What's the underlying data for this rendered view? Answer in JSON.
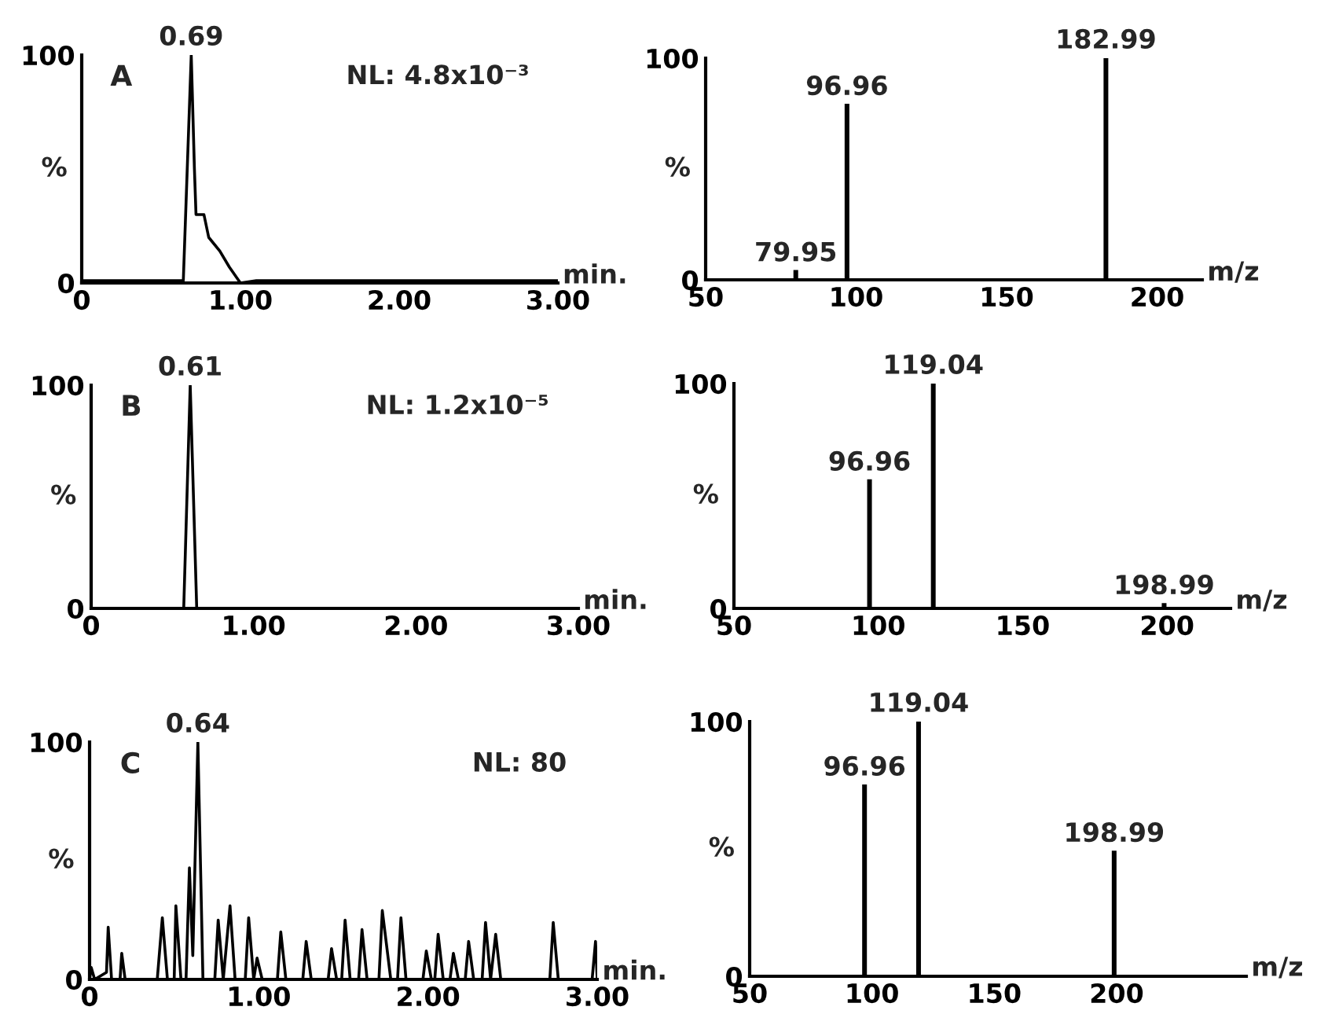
{
  "chart_data": [
    {
      "type": "line",
      "xlabel": "min.",
      "ylabel": "%",
      "annotations": [
        "A",
        "NL: 4.8x10⁻³",
        {
          "text": "0.69",
          "x": 0.69,
          "y": 100
        }
      ],
      "x": [
        0,
        0.2,
        0.4,
        0.6,
        0.64,
        0.69,
        0.71,
        0.72,
        0.77,
        0.8,
        0.87,
        0.93,
        0.98,
        1.0,
        1.1,
        1.5,
        2.0,
        2.5,
        3.0
      ],
      "series": [
        {
          "color": "#000000",
          "values": [
            1,
            1,
            1,
            1,
            1,
            100,
            50,
            30,
            30,
            20,
            14,
            7,
            2,
            0,
            1,
            1,
            1,
            1,
            1
          ]
        }
      ],
      "xlim": [
        0,
        3
      ],
      "ylim": [
        0,
        100
      ],
      "xticks": [
        0,
        {
          "value": 1,
          "label": "1.00"
        },
        {
          "value": 2,
          "label": "2.00"
        },
        {
          "value": 3,
          "label": "3.00"
        }
      ],
      "yticks": [
        0,
        100
      ],
      "grid": false
    },
    {
      "type": "bar",
      "xlabel": "m/z",
      "ylabel": "%",
      "annotations": [
        {
          "text": "79.95",
          "x": 79.95,
          "y": 4
        },
        {
          "text": "96.96",
          "x": 96.96,
          "y": 79
        },
        {
          "text": "182.99",
          "x": 182.99,
          "y": 100
        }
      ],
      "x": [
        79.95,
        96.96,
        182.99
      ],
      "series": [
        {
          "color": "#000000",
          "values": [
            4,
            79,
            100
          ]
        }
      ],
      "xlim": [
        50,
        215
      ],
      "ylim": [
        0,
        100
      ],
      "xticks": [
        50,
        100,
        150,
        200
      ],
      "yticks": [
        0,
        100
      ],
      "grid": false
    },
    {
      "type": "line",
      "xlabel": "min.",
      "ylabel": "%",
      "annotations": [
        "B",
        "NL: 1.2x10⁻⁵",
        {
          "text": "0.61",
          "x": 0.61,
          "y": 100
        }
      ],
      "x": [
        0,
        0.57,
        0.61,
        0.65,
        1.0,
        2.0,
        3.0
      ],
      "series": [
        {
          "color": "#000000",
          "values": [
            0,
            0,
            100,
            0,
            0,
            0,
            0
          ]
        }
      ],
      "xlim": [
        0,
        3
      ],
      "ylim": [
        0,
        100
      ],
      "xticks": [
        0,
        {
          "value": 1,
          "label": "1.00"
        },
        {
          "value": 2,
          "label": "2.00"
        },
        {
          "value": 3,
          "label": "3.00"
        }
      ],
      "yticks": [
        0,
        100
      ],
      "grid": false
    },
    {
      "type": "bar",
      "xlabel": "m/z",
      "ylabel": "%",
      "annotations": [
        {
          "text": "96.96",
          "x": 96.96,
          "y": 57
        },
        {
          "text": "119.04",
          "x": 119.04,
          "y": 100
        },
        {
          "text": "198.99",
          "x": 198.99,
          "y": 2
        }
      ],
      "x": [
        96.96,
        119.04,
        198.99
      ],
      "series": [
        {
          "color": "#000000",
          "values": [
            57,
            100,
            2
          ]
        }
      ],
      "xlim": [
        50,
        222
      ],
      "ylim": [
        0,
        100
      ],
      "xticks": [
        50,
        100,
        150,
        200
      ],
      "yticks": [
        0,
        100
      ],
      "grid": false
    },
    {
      "type": "line",
      "xlabel": "min.",
      "ylabel": "%",
      "annotations": [
        "C",
        "NL: 80",
        {
          "text": "0.64",
          "x": 0.64,
          "y": 100
        }
      ],
      "x": [
        0,
        0.01,
        0.03,
        0.1,
        0.11,
        0.13,
        0.18,
        0.19,
        0.21,
        0.4,
        0.43,
        0.46,
        0.5,
        0.51,
        0.54,
        0.57,
        0.59,
        0.61,
        0.64,
        0.67,
        0.74,
        0.76,
        0.79,
        0.83,
        0.86,
        0.92,
        0.94,
        0.97,
        0.99,
        1.02,
        1.11,
        1.13,
        1.16,
        1.26,
        1.28,
        1.31,
        1.41,
        1.43,
        1.46,
        1.49,
        1.51,
        1.54,
        1.59,
        1.61,
        1.64,
        1.71,
        1.73,
        1.78,
        1.82,
        1.84,
        1.87,
        1.97,
        1.99,
        2.02,
        2.04,
        2.06,
        2.09,
        2.13,
        2.15,
        2.18,
        2.22,
        2.24,
        2.27,
        2.32,
        2.34,
        2.37,
        2.4,
        2.43,
        2.72,
        2.74,
        2.77,
        2.97,
        2.99,
        3.0
      ],
      "series": [
        {
          "color": "#000000",
          "values": [
            0,
            5,
            0,
            3,
            22,
            0,
            0,
            11,
            0,
            0,
            26,
            0,
            0,
            31,
            0,
            0,
            47,
            10,
            100,
            0,
            0,
            25,
            0,
            31,
            0,
            0,
            26,
            0,
            9,
            0,
            0,
            20,
            0,
            0,
            16,
            0,
            0,
            13,
            0,
            0,
            25,
            0,
            0,
            21,
            0,
            0,
            29,
            0,
            0,
            26,
            0,
            0,
            12,
            0,
            0,
            19,
            0,
            0,
            11,
            0,
            0,
            16,
            0,
            0,
            24,
            0,
            19,
            0,
            0,
            24,
            0,
            0,
            16,
            0
          ]
        }
      ],
      "xlim": [
        0,
        3
      ],
      "ylim": [
        0,
        100
      ],
      "xticks": [
        0,
        {
          "value": 1,
          "label": "1.00"
        },
        {
          "value": 2,
          "label": "2.00"
        },
        {
          "value": 3,
          "label": "3.00"
        }
      ],
      "yticks": [
        0,
        100
      ],
      "grid": false
    },
    {
      "type": "bar",
      "xlabel": "m/z",
      "ylabel": "%",
      "annotations": [
        {
          "text": "96.96",
          "x": 96.96,
          "y": 75
        },
        {
          "text": "119.04",
          "x": 119.04,
          "y": 100
        },
        {
          "text": "198.99",
          "x": 198.99,
          "y": 49
        }
      ],
      "x": [
        96.96,
        119.04,
        198.99
      ],
      "series": [
        {
          "color": "#000000",
          "values": [
            75,
            100,
            49
          ]
        }
      ],
      "xlim": [
        50,
        253
      ],
      "ylim": [
        0,
        100
      ],
      "xticks": [
        50,
        100,
        150,
        200
      ],
      "yticks": [
        0,
        100
      ],
      "grid": false
    }
  ]
}
